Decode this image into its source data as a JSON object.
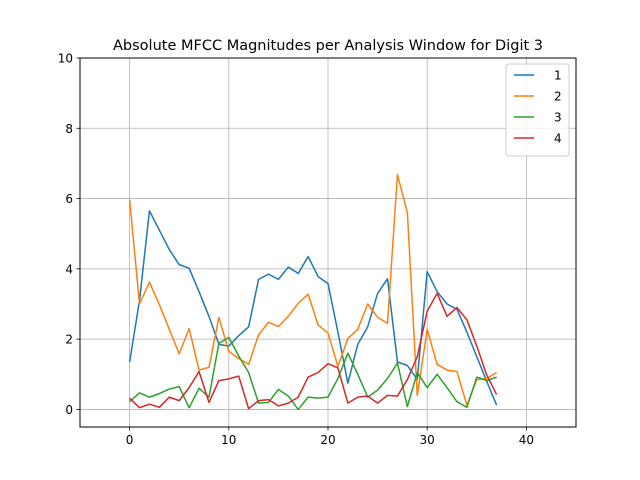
{
  "chart_data": {
    "type": "line",
    "title": "Absolute MFCC Magnitudes per Analysis Window for Digit 3",
    "xlabel": "",
    "ylabel": "",
    "xlim": [
      -5,
      45
    ],
    "ylim": [
      -0.5,
      10
    ],
    "xticks": [
      0,
      10,
      20,
      30,
      40
    ],
    "yticks": [
      0,
      2,
      4,
      6,
      8,
      10
    ],
    "grid": true,
    "legend_position": "top-right",
    "x": [
      0,
      1,
      2,
      3,
      4,
      5,
      6,
      7,
      8,
      9,
      10,
      11,
      12,
      13,
      14,
      15,
      16,
      17,
      18,
      19,
      20,
      21,
      22,
      23,
      24,
      25,
      26,
      27,
      28,
      29,
      30,
      31,
      32,
      33,
      34,
      35,
      36,
      37
    ],
    "series": [
      {
        "name": "1",
        "color": "#1f77b4",
        "values": [
          1.35,
          3.1,
          5.65,
          5.1,
          4.55,
          4.12,
          4.02,
          3.35,
          2.65,
          1.85,
          1.8,
          2.1,
          2.35,
          3.7,
          3.85,
          3.7,
          4.05,
          3.87,
          4.35,
          3.78,
          3.58,
          2.2,
          0.75,
          1.85,
          2.35,
          3.3,
          3.72,
          1.35,
          1.25,
          0.85,
          3.92,
          3.35,
          3.0,
          2.85,
          2.2,
          1.5,
          0.8,
          0.12
        ]
      },
      {
        "name": "2",
        "color": "#ff7f0e",
        "values": [
          5.97,
          3.0,
          3.62,
          2.98,
          2.28,
          1.58,
          2.3,
          1.12,
          1.2,
          2.62,
          1.65,
          1.45,
          1.28,
          2.12,
          2.48,
          2.36,
          2.65,
          3.02,
          3.28,
          2.4,
          2.18,
          1.22,
          2.02,
          2.28,
          3.0,
          2.62,
          2.45,
          6.68,
          5.6,
          0.4,
          2.28,
          1.28,
          1.12,
          1.08,
          0.12,
          0.85,
          0.88,
          1.05
        ]
      },
      {
        "name": "3",
        "color": "#2ca02c",
        "values": [
          0.22,
          0.47,
          0.35,
          0.45,
          0.58,
          0.65,
          0.05,
          0.6,
          0.35,
          1.88,
          2.05,
          1.52,
          1.05,
          0.18,
          0.2,
          0.57,
          0.38,
          0.0,
          0.35,
          0.32,
          0.35,
          0.88,
          1.6,
          1.0,
          0.35,
          0.55,
          0.88,
          1.32,
          0.08,
          1.05,
          0.62,
          1.0,
          0.62,
          0.22,
          0.06,
          0.92,
          0.82,
          0.92
        ]
      },
      {
        "name": "4",
        "color": "#d62728",
        "values": [
          0.32,
          0.05,
          0.15,
          0.06,
          0.35,
          0.25,
          0.62,
          1.08,
          0.2,
          0.82,
          0.87,
          0.95,
          0.02,
          0.25,
          0.28,
          0.1,
          0.18,
          0.35,
          0.92,
          1.05,
          1.3,
          1.18,
          0.18,
          0.35,
          0.38,
          0.18,
          0.4,
          0.38,
          0.85,
          1.5,
          2.8,
          3.3,
          2.65,
          2.9,
          2.55,
          1.8,
          0.98,
          0.42
        ]
      }
    ]
  }
}
